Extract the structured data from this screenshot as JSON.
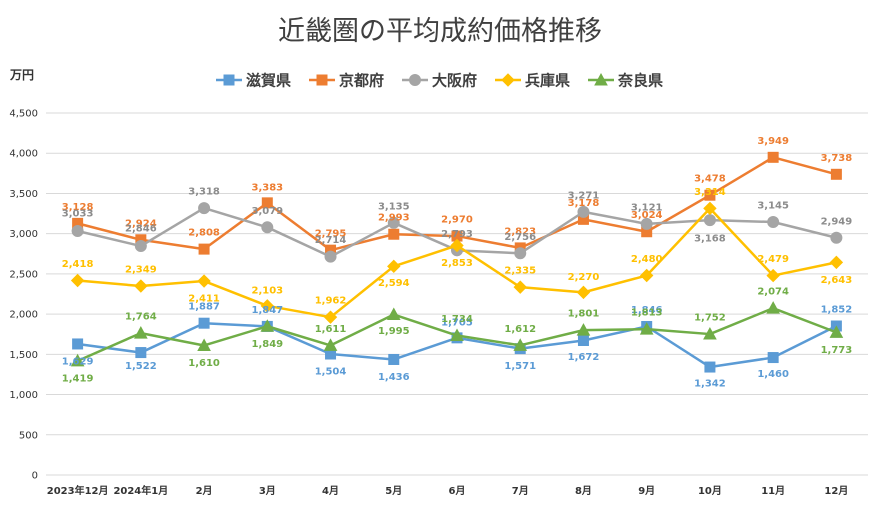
{
  "chart_data": {
    "type": "line",
    "title": "近畿圏の平均成約価格推移",
    "ylabel": "万円",
    "xlabel": "",
    "ylim": [
      0,
      4500
    ],
    "ytick_step": 500,
    "grid": true,
    "legend_position": "top",
    "categories": [
      "2023年12月",
      "2024年1月",
      "2月",
      "3月",
      "4月",
      "5月",
      "6月",
      "7月",
      "8月",
      "9月",
      "10月",
      "11月",
      "12月"
    ],
    "series": [
      {
        "name": "滋賀県",
        "color": "#5b9bd5",
        "marker": "square",
        "values": [
          1629,
          1522,
          1887,
          1847,
          1504,
          1436,
          1705,
          1571,
          1672,
          1846,
          1342,
          1460,
          1852
        ],
        "labels": [
          "1,629",
          "1,522",
          "1,887",
          "1,847",
          "1,504",
          "1,436",
          "1,705",
          "1,571",
          "1,672",
          "1,846",
          "1,342",
          "1,460",
          "1,852"
        ]
      },
      {
        "name": "京都府",
        "color": "#ed7d31",
        "marker": "square",
        "values": [
          3128,
          2924,
          2808,
          3383,
          2795,
          2993,
          2970,
          2823,
          3178,
          3024,
          3478,
          3949,
          3738
        ],
        "labels": [
          "3,128",
          "2,924",
          "2,808",
          "3,383",
          "2,795",
          "2,993",
          "2,970",
          "2,823",
          "3,178",
          "3,024",
          "3,478",
          "3,949",
          "3,738"
        ]
      },
      {
        "name": "大阪府",
        "color": "#a5a5a5",
        "marker": "circle",
        "values": [
          3033,
          2846,
          3318,
          3079,
          2714,
          3135,
          2793,
          2756,
          3271,
          3121,
          3168,
          3145,
          2949
        ],
        "labels": [
          "3,033",
          "2,846",
          "3,318",
          "3,079",
          "2,714",
          "3,135",
          "2,793",
          "2,756",
          "3,271",
          "3,121",
          "3,168",
          "3,145",
          "2,949"
        ]
      },
      {
        "name": "兵庫県",
        "color": "#ffc000",
        "marker": "diamond",
        "values": [
          2418,
          2349,
          2411,
          2103,
          1962,
          2594,
          2853,
          2335,
          2270,
          2480,
          3314,
          2479,
          2643
        ],
        "labels": [
          "2,418",
          "2,349",
          "2,411",
          "2,103",
          "1,962",
          "2,594",
          "2,853",
          "2,335",
          "2,270",
          "2,480",
          "3,314",
          "2,479",
          "2,643"
        ]
      },
      {
        "name": "奈良県",
        "color": "#70ad47",
        "marker": "triangle",
        "values": [
          1419,
          1764,
          1610,
          1849,
          1611,
          1995,
          1734,
          1612,
          1801,
          1813,
          1752,
          2074,
          1773
        ],
        "labels": [
          "1,419",
          "1,764",
          "1,610",
          "1,849",
          "1,611",
          "1,995",
          "1,734",
          "1,612",
          "1,801",
          "1,813",
          "1,752",
          "2,074",
          "1,773"
        ]
      }
    ]
  }
}
